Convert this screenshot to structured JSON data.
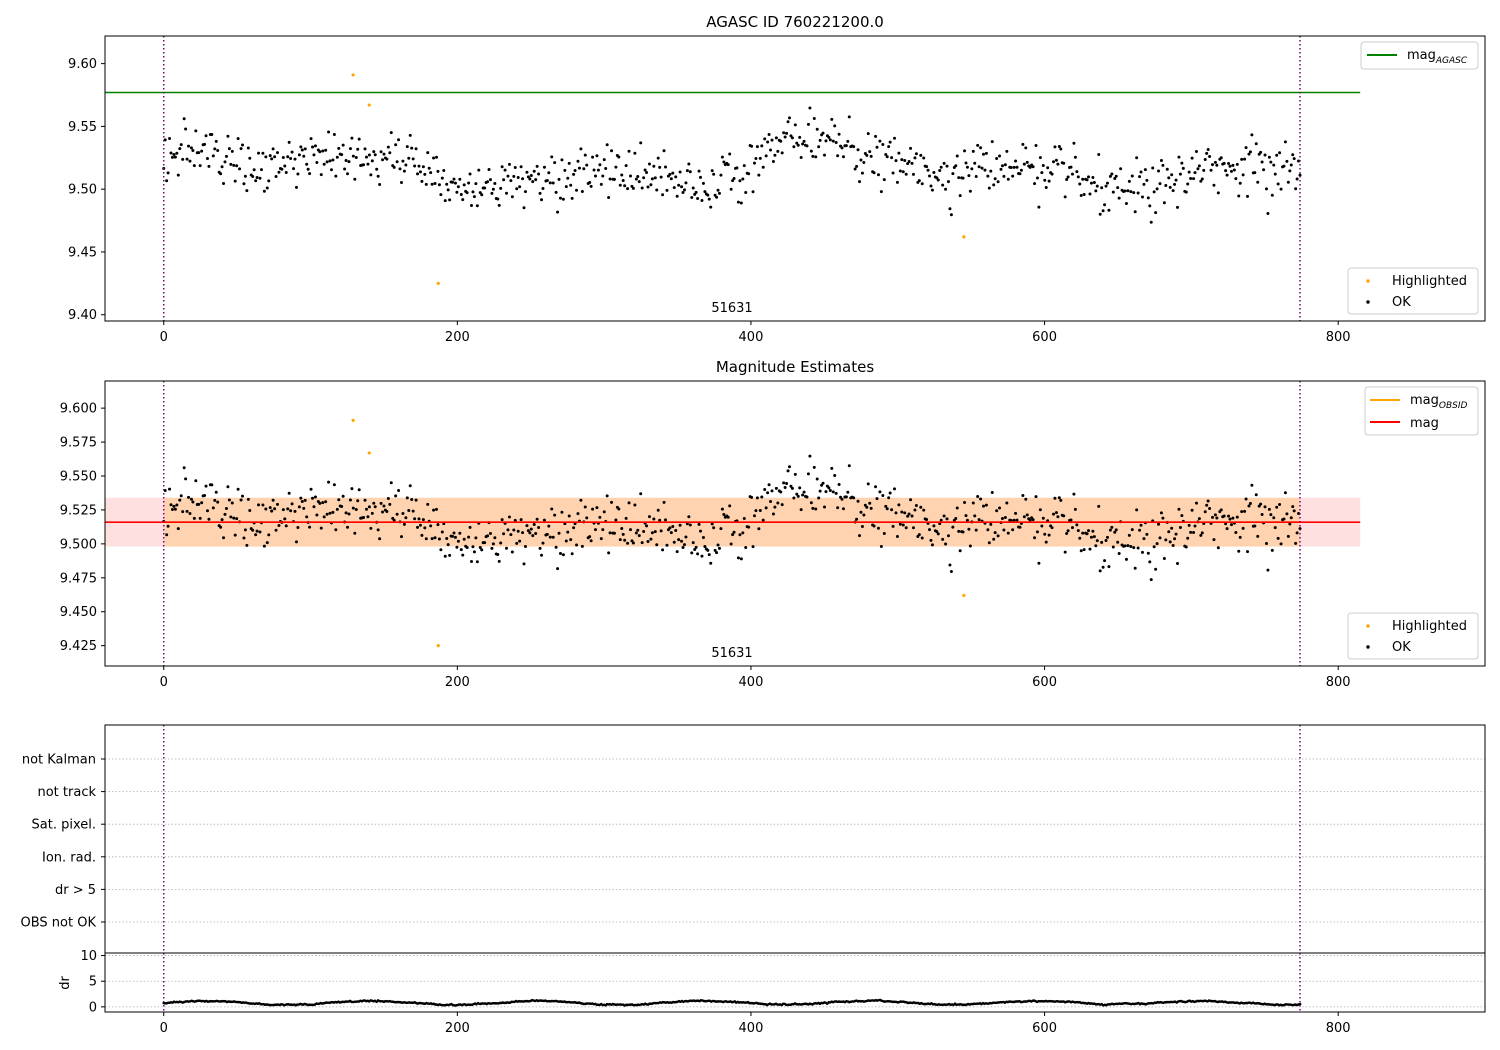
{
  "figure": {
    "colors": {
      "ok": "#000000",
      "highlighted": "#ffa500",
      "agasc_line": "#008000",
      "mag_line": "#ff0000",
      "obsid_line": "#ffa500",
      "obsid_band": "#ffa500",
      "mag_band": "#ff0000",
      "boundary": "#800080",
      "grid": "#b0b0b0"
    },
    "obsid_label": "51631"
  },
  "chart_data": [
    {
      "type": "scatter",
      "title": "AGASC ID 760221200.0",
      "xlim": [
        -40,
        900
      ],
      "ylim": [
        9.395,
        9.622
      ],
      "xticks": [
        0,
        200,
        400,
        600,
        800
      ],
      "xtick_labels": [
        "0",
        "200",
        "400",
        "600",
        "800"
      ],
      "yticks": [
        9.4,
        9.45,
        9.5,
        9.55,
        9.6
      ],
      "ytick_labels": [
        "9.40",
        "9.45",
        "9.50",
        "9.55",
        "9.60"
      ],
      "hlines": [
        {
          "y": 9.577,
          "x": [
            -40,
            815
          ],
          "color": "#008000",
          "label": "mag_AGASC"
        }
      ],
      "vlines": [
        0,
        774
      ],
      "obsid_annotation": {
        "text": "51631",
        "x": 385,
        "y": 9.4
      },
      "legend_top": {
        "position": "upper right",
        "entries": [
          {
            "label": "mag",
            "subscript": "AGASC",
            "kind": "line",
            "color": "#008000"
          }
        ]
      },
      "legend_bottom": {
        "position": "lower right",
        "entries": [
          {
            "label": "Highlighted",
            "kind": "marker",
            "color": "#ffa500"
          },
          {
            "label": "OK",
            "kind": "marker",
            "color": "#000000"
          }
        ]
      },
      "series": [
        {
          "name": "OK",
          "color": "#000000",
          "x_range": [
            0,
            774
          ],
          "n": 780,
          "mean": 9.515,
          "spread": 0.018
        },
        {
          "name": "Highlighted",
          "color": "#ffa500",
          "points": [
            [
              129,
              9.591
            ],
            [
              140,
              9.567
            ],
            [
              187,
              9.425
            ],
            [
              545,
              9.462
            ]
          ]
        }
      ]
    },
    {
      "type": "scatter",
      "title": "Magnitude Estimates",
      "xlim": [
        -40,
        900
      ],
      "ylim": [
        9.41,
        9.62
      ],
      "xticks": [
        0,
        200,
        400,
        600,
        800
      ],
      "xtick_labels": [
        "0",
        "200",
        "400",
        "600",
        "800"
      ],
      "yticks": [
        9.425,
        9.45,
        9.475,
        9.5,
        9.525,
        9.55,
        9.575,
        9.6
      ],
      "ytick_labels": [
        "9.425",
        "9.450",
        "9.475",
        "9.500",
        "9.525",
        "9.550",
        "9.575",
        "9.600"
      ],
      "hlines": [
        {
          "y": 9.516,
          "x": [
            0,
            774
          ],
          "color": "#ffa500",
          "label": "mag_OBSID"
        },
        {
          "y": 9.516,
          "x": [
            -40,
            815
          ],
          "color": "#ff0000",
          "label": "mag"
        }
      ],
      "bands": [
        {
          "y": [
            9.498,
            9.534
          ],
          "x": [
            -40,
            815
          ],
          "color": "#ff0000",
          "opacity": 0.12
        },
        {
          "y": [
            9.498,
            9.534
          ],
          "x": [
            0,
            774
          ],
          "color": "#ffa500",
          "opacity": 0.22
        }
      ],
      "vlines": [
        0,
        774
      ],
      "obsid_annotation": {
        "text": "51631",
        "x": 385,
        "y": 9.415
      },
      "legend_top": {
        "position": "upper right",
        "entries": [
          {
            "label": "mag",
            "subscript": "OBSID",
            "kind": "line",
            "color": "#ffa500"
          },
          {
            "label": "mag",
            "kind": "line",
            "color": "#ff0000"
          }
        ]
      },
      "legend_bottom": {
        "position": "lower right",
        "entries": [
          {
            "label": "Highlighted",
            "kind": "marker",
            "color": "#ffa500"
          },
          {
            "label": "OK",
            "kind": "marker",
            "color": "#000000"
          }
        ]
      },
      "series": [
        {
          "name": "OK",
          "color": "#000000",
          "x_range": [
            0,
            774
          ],
          "n": 780,
          "mean": 9.515,
          "spread": 0.018
        },
        {
          "name": "Highlighted",
          "color": "#ffa500",
          "points": [
            [
              129,
              9.591
            ],
            [
              140,
              9.567
            ],
            [
              187,
              9.425
            ],
            [
              545,
              9.462
            ]
          ]
        }
      ]
    },
    {
      "type": "table",
      "title": "",
      "xlim": [
        -40,
        900
      ],
      "categories": [
        "not Kalman",
        "not track",
        "Sat. pixel.",
        "Ion. rad.",
        "dr > 5",
        "OBS not OK"
      ],
      "flags": [],
      "vlines": [
        0,
        774
      ]
    },
    {
      "type": "scatter",
      "title": "",
      "ylabel": "dr",
      "xlim": [
        -40,
        900
      ],
      "ylim": [
        -1,
        10.5
      ],
      "xticks": [
        0,
        200,
        400,
        600,
        800
      ],
      "xtick_labels": [
        "0",
        "200",
        "400",
        "600",
        "800"
      ],
      "yticks": [
        0,
        5,
        10
      ],
      "ytick_labels": [
        "0",
        "5",
        "10"
      ],
      "vlines": [
        0,
        774
      ],
      "series": [
        {
          "name": "dr",
          "color": "#000000",
          "x_range": [
            0,
            774
          ],
          "n": 775,
          "typical": 0.8
        }
      ]
    }
  ]
}
